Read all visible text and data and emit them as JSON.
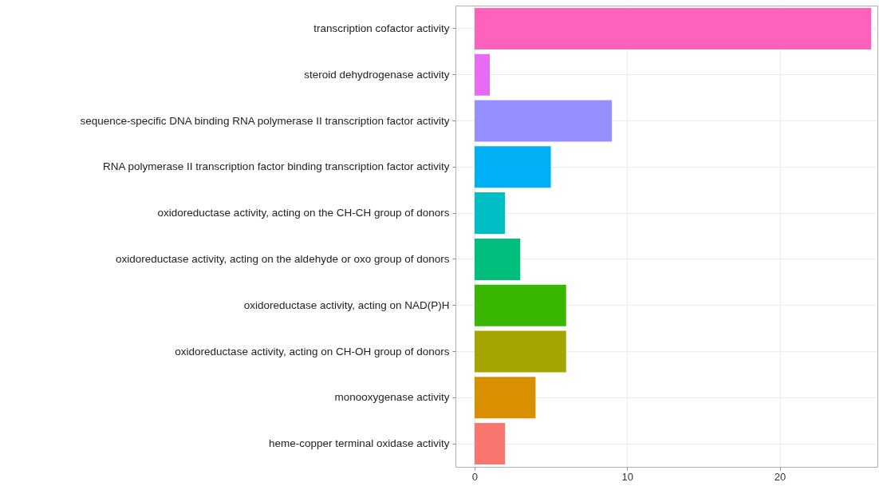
{
  "chart_data": {
    "type": "bar",
    "orientation": "horizontal",
    "categories": [
      "transcription cofactor activity",
      "steroid dehydrogenase activity",
      "sequence-specific DNA binding RNA polymerase II transcription factor activity",
      "RNA polymerase II transcription factor binding transcription factor activity",
      "oxidoreductase activity, acting on the CH-CH group of donors",
      "oxidoreductase activity, acting on the aldehyde or oxo group of donors",
      "oxidoreductase activity, acting on NAD(P)H",
      "oxidoreductase activity, acting on CH-OH group of donors",
      "monooxygenase activity",
      "heme-copper terminal oxidase activity"
    ],
    "values": [
      26,
      1,
      9,
      5,
      2,
      3,
      6,
      6,
      4,
      2
    ],
    "colors": [
      "#ff62bc",
      "#e76bf3",
      "#9590ff",
      "#00b0f6",
      "#00bfc4",
      "#00bf7d",
      "#39b600",
      "#a3a500",
      "#d89000",
      "#f8766d"
    ],
    "xlim": [
      -1.25,
      26.4
    ],
    "xticks": [
      0,
      10,
      20
    ],
    "grid": true
  }
}
